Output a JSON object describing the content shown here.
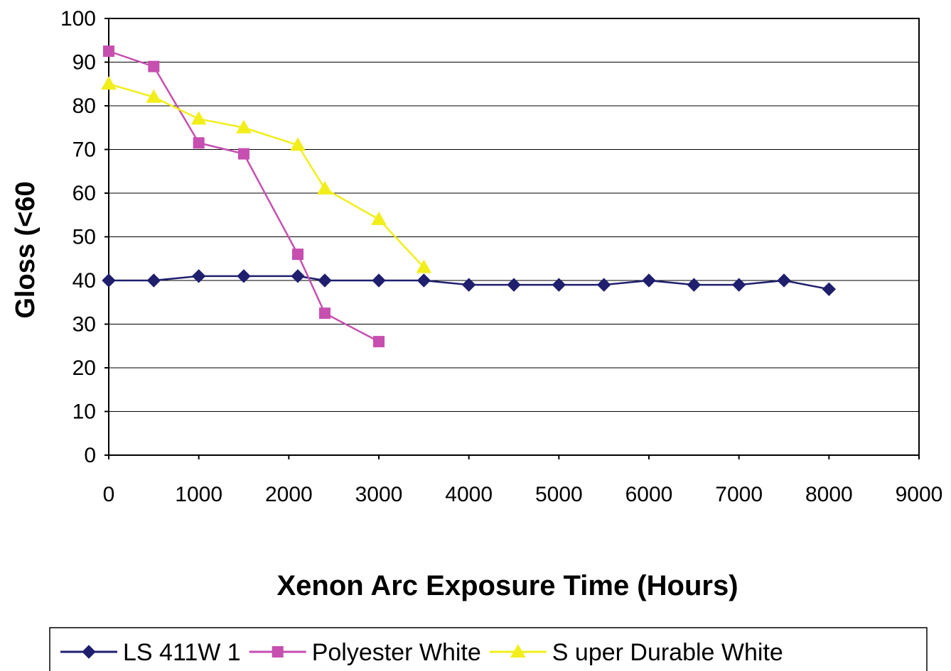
{
  "chart_data": {
    "type": "line",
    "title": "",
    "xlabel": "Xenon Arc Exposure Time (Hours)",
    "ylabel": "Gloss (<60",
    "xlim": [
      0,
      9000
    ],
    "ylim": [
      0,
      100
    ],
    "xticks": [
      0,
      1000,
      2000,
      3000,
      4000,
      5000,
      6000,
      7000,
      8000,
      9000
    ],
    "yticks": [
      0,
      10,
      20,
      30,
      40,
      50,
      60,
      70,
      80,
      90,
      100
    ],
    "grid": true,
    "legend_position": "bottom",
    "series": [
      {
        "name": "LS 411W 1",
        "color": "#1f1f6e",
        "marker": "diamond",
        "x": [
          0,
          500,
          1000,
          1500,
          2100,
          2400,
          3000,
          3500,
          4000,
          4500,
          5000,
          5500,
          6000,
          6500,
          7000,
          7500,
          8000
        ],
        "y": [
          40,
          40,
          41,
          41,
          41,
          40,
          40,
          40,
          39,
          39,
          39,
          39,
          40,
          39,
          39,
          40,
          38
        ]
      },
      {
        "name": "Polyester White",
        "color": "#c64fb0",
        "marker": "square",
        "x": [
          0,
          500,
          1000,
          1500,
          2100,
          2400,
          3000
        ],
        "y": [
          92.5,
          89,
          71.5,
          69,
          46,
          32.5,
          26
        ]
      },
      {
        "name": "S uper Durable White",
        "color": "#f2ee1a",
        "marker": "triangle",
        "x": [
          0,
          500,
          1000,
          1500,
          2100,
          2400,
          3000,
          3500
        ],
        "y": [
          85,
          82,
          77,
          75,
          71,
          61,
          54,
          43
        ]
      }
    ]
  }
}
